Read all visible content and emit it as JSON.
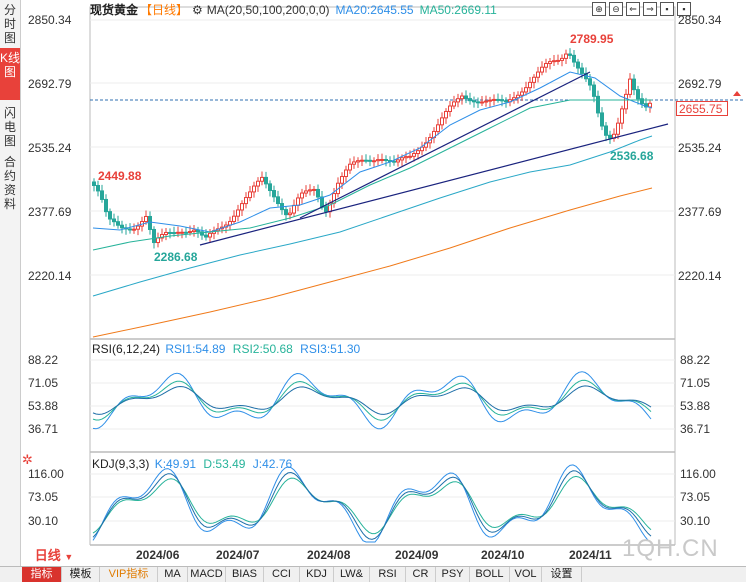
{
  "sidebar": {
    "items": [
      "分时图",
      "K线图",
      "闪电图",
      "合约资料"
    ],
    "active_index": 1
  },
  "header": {
    "instrument": "现货黄金",
    "period": "【日线】",
    "indicator": "MA(20,50,100,200,0,0)",
    "ma20": "MA20:2645.55",
    "ma50": "MA50:2669.11"
  },
  "tools": [
    "⊕",
    "⊖",
    "⇐",
    "⇒",
    "▪",
    "▪"
  ],
  "price_axis": [
    "2850.34",
    "2692.79",
    "2535.24",
    "2377.69",
    "2220.14"
  ],
  "current_price": "2655.75",
  "annotations": {
    "high": "2789.95",
    "low1": "2449.88",
    "low2": "2286.68",
    "low3": "2536.68"
  },
  "rsi": {
    "title": "RSI(6,12,24)",
    "rsi1": "RSI1:54.89",
    "rsi2": "RSI2:50.68",
    "rsi3": "RSI3:51.30",
    "axis": [
      "88.22",
      "71.05",
      "53.88",
      "36.71"
    ]
  },
  "kdj": {
    "title": "KDJ(9,3,3)",
    "k": "K:49.91",
    "d": "D:53.49",
    "j": "J:42.76",
    "axis": [
      "116.00",
      "73.05",
      "30.10"
    ]
  },
  "period_button": "日线",
  "dates": [
    "2024/06",
    "2024/07",
    "2024/08",
    "2024/09",
    "2024/10",
    "2024/11"
  ],
  "watermark": "1QH.CN",
  "tabs": [
    "指标",
    "模板",
    "VIP指标",
    "MA",
    "MACD",
    "BIAS",
    "CCI",
    "KDJ",
    "LW&",
    "RSI",
    "CR",
    "PSY",
    "BOLL",
    "VOL",
    "设置"
  ],
  "active_tab": 0,
  "colors": {
    "up": "#e8413a",
    "down": "#26a69a",
    "ma20": "#2f8fe8",
    "ma50": "#27b39a",
    "ma200": "#f07a1a",
    "trend": "#1a237e"
  }
}
